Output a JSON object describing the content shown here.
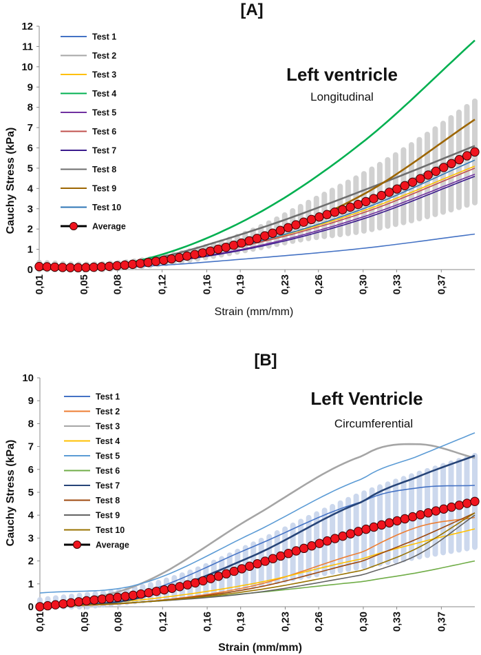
{
  "chart_data": [
    {
      "type": "line",
      "title": "[A]",
      "region_title": "Left ventricle",
      "direction": "Longitudinal",
      "xlabel": "Strain (mm/mm)",
      "ylabel": "Cauchy Stress (kPa)",
      "xlim": [
        0.01,
        0.4
      ],
      "ylim": [
        0,
        12
      ],
      "yticks": [
        "0",
        "1",
        "2",
        "3",
        "4",
        "5",
        "6",
        "7",
        "8",
        "9",
        "10",
        "11",
        "12"
      ],
      "xticks": [
        "0,01",
        "0,05",
        "0,08",
        "0,12",
        "0,16",
        "0,19",
        "0,23",
        "0,26",
        "0,30",
        "0,33",
        "0,37"
      ],
      "series": [
        {
          "name": "Test 1",
          "color": "#4472c4",
          "x": [
            0.01,
            0.1,
            0.2,
            0.3,
            0.4
          ],
          "values": [
            0.0,
            0.15,
            0.55,
            1.05,
            1.75
          ]
        },
        {
          "name": "Test 2",
          "color": "#a5a5a5",
          "x": [
            0.01,
            0.1,
            0.2,
            0.3,
            0.4
          ],
          "values": [
            0.0,
            0.35,
            1.6,
            3.4,
            5.9
          ]
        },
        {
          "name": "Test 3",
          "color": "#ffc000",
          "x": [
            0.01,
            0.1,
            0.2,
            0.3,
            0.4
          ],
          "values": [
            0.0,
            0.3,
            1.3,
            2.9,
            5.1
          ]
        },
        {
          "name": "Test 4",
          "color": "#00b050",
          "x": [
            0.01,
            0.1,
            0.2,
            0.3,
            0.4
          ],
          "values": [
            0.0,
            0.45,
            2.6,
            6.3,
            11.3
          ]
        },
        {
          "name": "Test 5",
          "color": "#7030a0",
          "x": [
            0.01,
            0.1,
            0.2,
            0.3,
            0.4
          ],
          "values": [
            0.0,
            0.25,
            1.1,
            2.6,
            4.7
          ]
        },
        {
          "name": "Test 6",
          "color": "#c0504d",
          "x": [
            0.01,
            0.1,
            0.2,
            0.3,
            0.4
          ],
          "values": [
            0.0,
            0.3,
            1.25,
            2.8,
            5.0
          ]
        },
        {
          "name": "Test 7",
          "color": "#3a1a8c",
          "x": [
            0.01,
            0.1,
            0.2,
            0.3,
            0.4
          ],
          "values": [
            0.0,
            0.25,
            1.05,
            2.5,
            4.6
          ]
        },
        {
          "name": "Test 8",
          "color": "#6e6e6e",
          "x": [
            0.01,
            0.1,
            0.2,
            0.3,
            0.4
          ],
          "values": [
            0.0,
            0.4,
            1.9,
            3.9,
            6.1
          ]
        },
        {
          "name": "Test 9",
          "color": "#9c6500",
          "x": [
            0.01,
            0.1,
            0.2,
            0.3,
            0.4
          ],
          "values": [
            0.0,
            0.3,
            1.4,
            3.7,
            7.4
          ]
        },
        {
          "name": "Test 10",
          "color": "#2e75b6",
          "x": [
            0.01,
            0.1,
            0.2,
            0.3,
            0.4
          ],
          "values": [
            0.0,
            0.3,
            1.3,
            3.0,
            5.4
          ]
        }
      ],
      "average": {
        "name": "Average",
        "x": [
          0.01,
          0.05,
          0.1,
          0.15,
          0.2,
          0.25,
          0.3,
          0.35,
          0.4
        ],
        "values": [
          0.15,
          0.1,
          0.3,
          0.75,
          1.45,
          2.4,
          3.3,
          4.45,
          5.8
        ]
      },
      "band_halfwidth": {
        "x": [
          0.01,
          0.1,
          0.2,
          0.3,
          0.4
        ],
        "values": [
          0.2,
          0.15,
          0.45,
          1.4,
          2.5
        ]
      }
    },
    {
      "type": "line",
      "title": "[B]",
      "region_title": "Left Ventricle",
      "direction": "Circumferential",
      "xlabel": "Strain (mm/mm)",
      "ylabel": "Cauchy Stress (kPa)",
      "xlim": [
        0.01,
        0.4
      ],
      "ylim": [
        0,
        10
      ],
      "yticks": [
        "0",
        "1",
        "2",
        "3",
        "4",
        "5",
        "6",
        "7",
        "8",
        "9",
        "10"
      ],
      "xticks": [
        "0,01",
        "0,05",
        "0,08",
        "0,12",
        "0,16",
        "0,19",
        "0,23",
        "0,26",
        "0,30",
        "0,33",
        "0,37"
      ],
      "series": [
        {
          "name": "Test 1",
          "color": "#4472c4",
          "x": [
            0.01,
            0.1,
            0.2,
            0.3,
            0.35,
            0.4
          ],
          "values": [
            0.0,
            0.6,
            2.6,
            4.6,
            5.2,
            5.3
          ]
        },
        {
          "name": "Test 2",
          "color": "#ed7d31",
          "x": [
            0.01,
            0.1,
            0.2,
            0.3,
            0.35,
            0.4
          ],
          "values": [
            0.0,
            0.2,
            0.9,
            2.4,
            3.5,
            3.9
          ]
        },
        {
          "name": "Test 3",
          "color": "#a5a5a5",
          "x": [
            0.01,
            0.1,
            0.2,
            0.3,
            0.35,
            0.4
          ],
          "values": [
            0.0,
            1.0,
            3.9,
            6.6,
            7.1,
            6.5
          ]
        },
        {
          "name": "Test 4",
          "color": "#ffc000",
          "x": [
            0.01,
            0.1,
            0.2,
            0.3,
            0.35,
            0.4
          ],
          "values": [
            0.0,
            0.3,
            1.0,
            2.1,
            2.8,
            3.4
          ]
        },
        {
          "name": "Test 5",
          "color": "#5b9bd5",
          "x": [
            0.01,
            0.1,
            0.2,
            0.3,
            0.35,
            0.4
          ],
          "values": [
            0.6,
            1.0,
            3.2,
            5.6,
            6.6,
            7.6
          ]
        },
        {
          "name": "Test 6",
          "color": "#70ad47",
          "x": [
            0.01,
            0.1,
            0.2,
            0.3,
            0.35,
            0.4
          ],
          "values": [
            0.0,
            0.2,
            0.6,
            1.1,
            1.5,
            2.0
          ]
        },
        {
          "name": "Test 7",
          "color": "#264478",
          "x": [
            0.01,
            0.1,
            0.2,
            0.3,
            0.35,
            0.4
          ],
          "values": [
            0.0,
            0.4,
            2.2,
            4.6,
            5.7,
            6.6
          ]
        },
        {
          "name": "Test 8",
          "color": "#9e480e",
          "x": [
            0.01,
            0.1,
            0.2,
            0.3,
            0.35,
            0.4
          ],
          "values": [
            0.0,
            0.2,
            0.8,
            2.0,
            3.0,
            4.1
          ]
        },
        {
          "name": "Test 9",
          "color": "#636363",
          "x": [
            0.01,
            0.1,
            0.2,
            0.3,
            0.35,
            0.4
          ],
          "values": [
            0.0,
            0.2,
            0.6,
            1.4,
            2.3,
            4.0
          ]
        },
        {
          "name": "Test 10",
          "color": "#997300",
          "x": [
            0.01,
            0.1,
            0.2,
            0.3,
            0.35,
            0.4
          ],
          "values": [
            0.0,
            0.2,
            0.7,
            1.6,
            2.6,
            4.1
          ]
        }
      ],
      "average": {
        "name": "Average",
        "x": [
          0.01,
          0.05,
          0.1,
          0.15,
          0.2,
          0.25,
          0.3,
          0.35,
          0.4
        ],
        "values": [
          0.0,
          0.25,
          0.55,
          1.05,
          1.8,
          2.6,
          3.35,
          4.0,
          4.6
        ]
      },
      "band_halfwidth": {
        "x": [
          0.01,
          0.1,
          0.2,
          0.3,
          0.4
        ],
        "values": [
          0.3,
          0.3,
          0.9,
          1.6,
          2.0
        ]
      }
    }
  ]
}
